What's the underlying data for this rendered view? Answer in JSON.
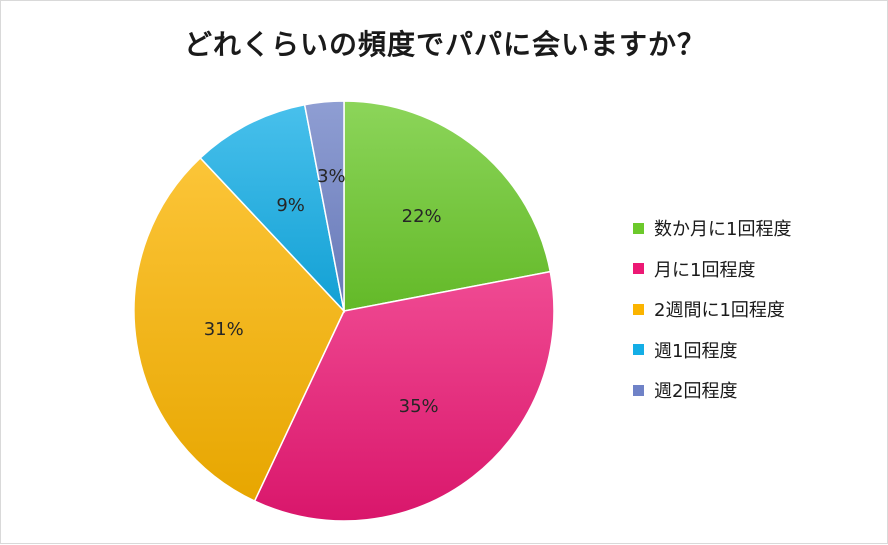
{
  "chart_data": {
    "type": "pie",
    "title": "どれくらいの頻度でパパに会いますか？",
    "categories": [
      "数か月に1回程度",
      "月に1回程度",
      "2週間に1回程度",
      "週1回程度",
      "週2回程度"
    ],
    "values": [
      22,
      35,
      31,
      9,
      3
    ],
    "value_labels": [
      "22%",
      "35%",
      "31%",
      "9%",
      "3%"
    ],
    "colors": [
      "#6cc92b",
      "#ec1874",
      "#fbb400",
      "#14aee6",
      "#6f82c7"
    ],
    "legend_position": "right"
  }
}
